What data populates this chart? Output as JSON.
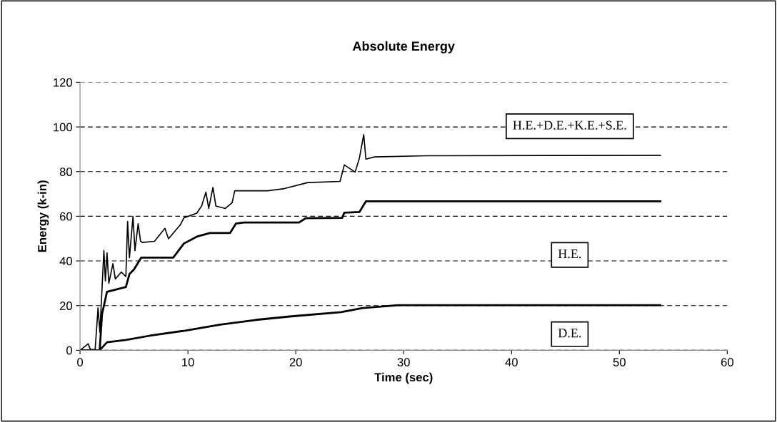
{
  "chart_data": {
    "type": "line",
    "title": "Absolute Energy",
    "xlabel": "Time (sec)",
    "ylabel": "Energy (k-in)",
    "xlim": [
      0,
      60
    ],
    "xticks": [
      0,
      10,
      20,
      30,
      40,
      50,
      60
    ],
    "ylim": [
      0,
      120
    ],
    "yticks": [
      0,
      20,
      40,
      60,
      80,
      100,
      120
    ],
    "grid": "y",
    "legend": false,
    "line_style": "solid",
    "marker": "none",
    "series": [
      {
        "name": "H.E.+D.E.+K.E.+S.E.",
        "color": "#000000",
        "x": [
          0.09,
          0.75,
          0.96,
          1.4,
          1.67,
          1.84,
          2.21,
          2.35,
          2.5,
          2.67,
          3.05,
          3.27,
          3.82,
          4.25,
          4.41,
          4.58,
          4.91,
          5.09,
          5.39,
          5.61,
          5.79,
          6.9,
          7.87,
          8.2,
          9.3,
          9.63,
          10.83,
          11.27,
          11.67,
          11.93,
          12.32,
          12.59,
          13.46,
          14.1,
          14.34,
          17.4,
          18.95,
          21.1,
          24.1,
          24.5,
          25.5,
          25.9,
          26.3,
          26.5,
          27.3,
          32.1,
          53.8
        ],
        "values": [
          0.3,
          2.9,
          0.3,
          0.3,
          19,
          8.0,
          44.6,
          31,
          43.6,
          30,
          38.8,
          31.9,
          35,
          33,
          57.7,
          41.5,
          59.9,
          44.6,
          56.7,
          48.8,
          48.3,
          48.8,
          54.6,
          49.9,
          56.2,
          59.3,
          61.4,
          64.6,
          70.8,
          63.5,
          72.9,
          64.6,
          63.5,
          66.1,
          71.4,
          71.4,
          72.4,
          75.1,
          75.6,
          83,
          79.8,
          86.1,
          96.6,
          85.6,
          86.6,
          87.1,
          87.3
        ]
      },
      {
        "name": "H.E.",
        "color": "#000000",
        "x": [
          0,
          1.82,
          2.04,
          2.5,
          4.25,
          4.58,
          5.0,
          5.68,
          8.64,
          9.63,
          10.83,
          12.04,
          13.9,
          14.45,
          15.2,
          20.3,
          20.9,
          24.3,
          24.5,
          25.9,
          26.5,
          53.8
        ],
        "values": [
          0,
          0,
          16.2,
          26.2,
          28.3,
          34.1,
          36.2,
          41.5,
          41.5,
          47.8,
          50.9,
          52.5,
          52.5,
          56.7,
          57.2,
          57.2,
          59.1,
          59.3,
          61.6,
          61.9,
          66.7,
          66.7
        ]
      },
      {
        "name": "D.E.",
        "color": "#000000",
        "x": [
          0,
          1.82,
          2.5,
          4.25,
          6.45,
          9.74,
          13.0,
          16.3,
          19.6,
          24.2,
          26.2,
          29.5,
          53.8
        ],
        "values": [
          0,
          0,
          3.6,
          4.6,
          6.5,
          8.8,
          11.5,
          13.6,
          15.2,
          17.1,
          18.9,
          20.2,
          20.2
        ]
      }
    ]
  }
}
